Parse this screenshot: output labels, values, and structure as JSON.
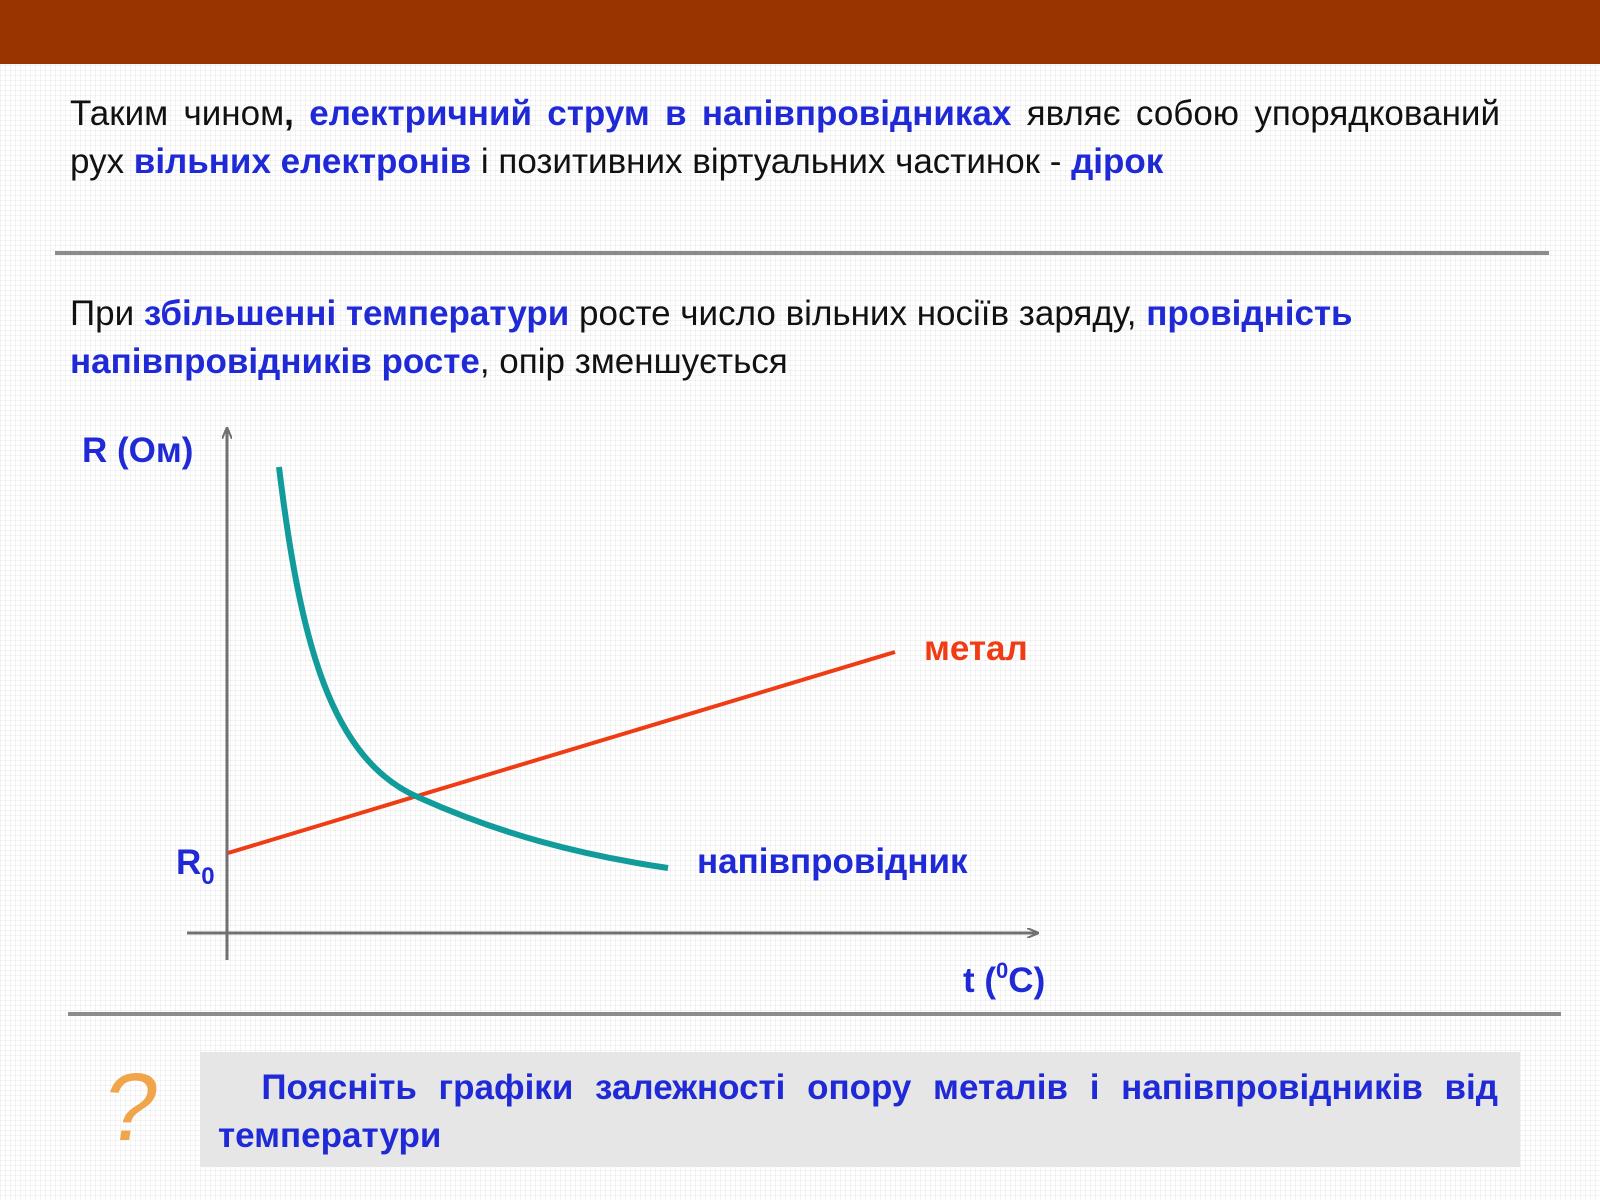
{
  "colors": {
    "header_bar": "#993300",
    "accent_text": "#1f2ad6",
    "metal_line": "#f03c14",
    "semiconductor_line": "#119b9b",
    "question_mark": "#f0a54a",
    "axis": "#707070"
  },
  "intro": {
    "t1": " Таким чином",
    "t2": ",",
    "t3": " електричний струм в напівпровідниках",
    "t4": " являє собою упорядкований рух ",
    "t5": "вільних електронів",
    "t6": " і позитивних віртуальних частинок - ",
    "t7": "дірок"
  },
  "temperature": {
    "t1": " При ",
    "t2": "збільшенні температури",
    "t3": " росте число вільних носіїв заряду, ",
    "t4": "провідність напівпровідників росте",
    "t5": ", опір зменшується"
  },
  "graph": {
    "y_axis_label": "R (Ом)",
    "x_axis_label_pre": "t (",
    "x_axis_label_sup": "0",
    "x_axis_label_post": "C)",
    "r0_main": "R",
    "r0_sub": "0",
    "metal_label": "метал",
    "semiconductor_label": "напівпровідник"
  },
  "task": {
    "icon": "question-mark-icon",
    "glyph": "?",
    "text": "  Поясніть графіки залежності опору металів і напівпровідників від температури"
  }
}
